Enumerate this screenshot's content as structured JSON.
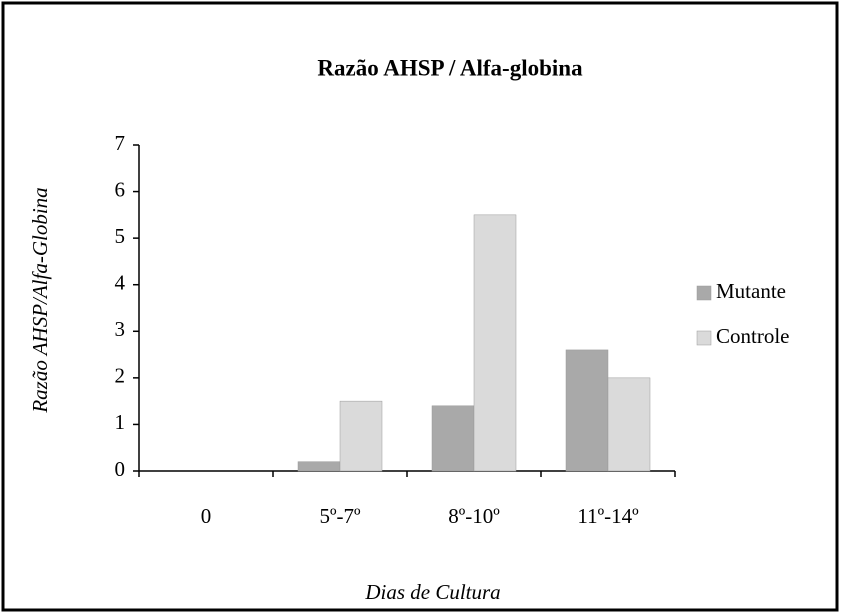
{
  "chart_data": {
    "type": "bar",
    "title": "Razão AHSP / Alfa-globina",
    "y_label": "Razão AHSP/Alfa-Globina",
    "x_label": "Dias de Cultura",
    "categories": [
      "0",
      "5º-7º",
      "8º-10º",
      "11º-14º"
    ],
    "series": [
      {
        "name": "Mutante",
        "color": "#a9a9a9",
        "values": [
          0,
          0.2,
          1.4,
          2.6
        ]
      },
      {
        "name": "Controle",
        "color": "#dadada",
        "values": [
          0,
          1.5,
          5.5,
          2.0
        ]
      }
    ],
    "ylim": [
      0,
      7
    ],
    "yticks": [
      0,
      1,
      2,
      3,
      4,
      5,
      6,
      7
    ],
    "legend": "right"
  }
}
